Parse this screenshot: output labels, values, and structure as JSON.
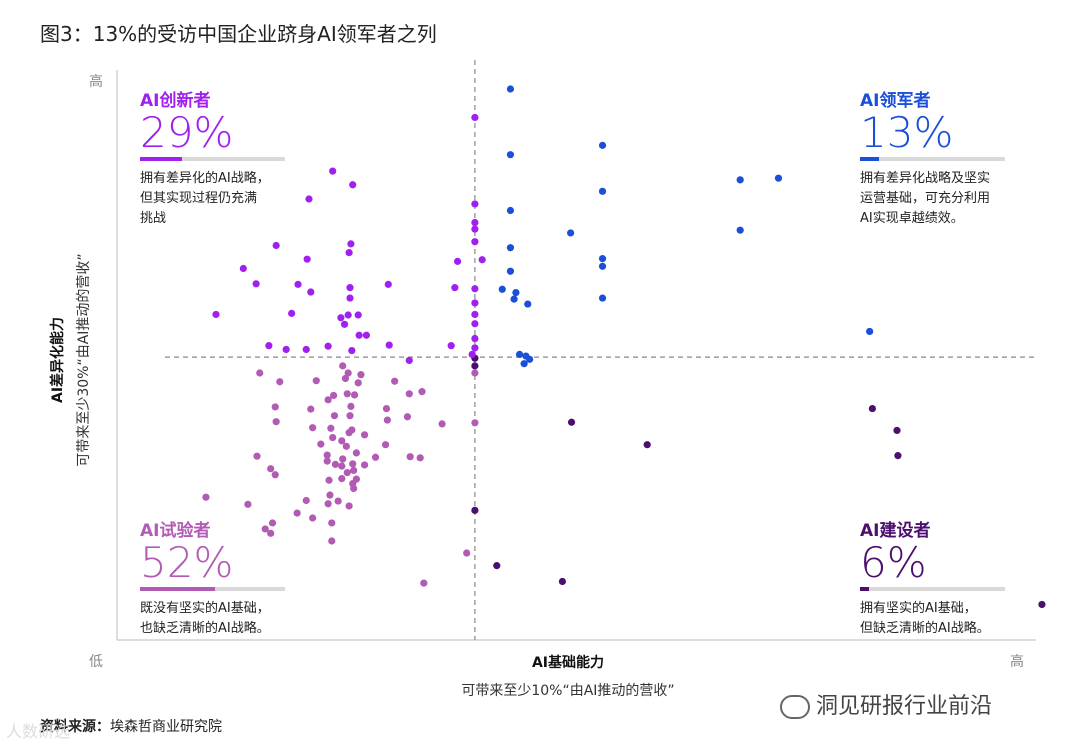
{
  "figure": {
    "title": "图3：13%的受访中国企业跻身AI领军者之列",
    "source_label": "资料来源：",
    "source_text": "埃森哲商业研究院",
    "watermark": "洞见研报行业前沿",
    "watermark2": "人数研选"
  },
  "chart_data": {
    "type": "scatter",
    "title": "图3：13%的受访中国企业跻身AI领军者之列",
    "xlabel": "AI基础能力",
    "xlabel_sub": "可带来至少10%“由AI推动的营收”",
    "ylabel": "AI差异化能力",
    "ylabel_sub": "可带来至少30%“由AI推动的营收”",
    "x_low": "低",
    "x_high": "高",
    "y_high": "高",
    "xlim": [
      0,
      100
    ],
    "ylim": [
      0,
      100
    ],
    "threshold_x": 38.6,
    "threshold_y": 49.5,
    "quadrants": [
      {
        "key": "innovator",
        "name": "AI创新者",
        "pct": "29%",
        "share": 0.29,
        "color": "#a020f0",
        "desc": [
          "拥有差异化的AI战略，",
          "但其实现过程仍充满",
          "挑战"
        ]
      },
      {
        "key": "leader",
        "name": "AI领军者",
        "pct": "13%",
        "share": 0.13,
        "color": "#1b4fd8",
        "desc": [
          "拥有差异化战略及坚实",
          "运营基础，可充分利用",
          "AI实现卓越绩效。"
        ]
      },
      {
        "key": "experimenter",
        "name": "AI试验者",
        "pct": "52%",
        "share": 0.52,
        "color": "#b25bb5",
        "desc": [
          "既没有坚实的AI基础，",
          "也缺乏清晰的AI战略。"
        ]
      },
      {
        "key": "builder",
        "name": "AI建设者",
        "pct": "6%",
        "share": 0.06,
        "color": "#4b0f6e",
        "desc": [
          "拥有坚实的AI基础，",
          "但缺乏清晰的AI战略。"
        ]
      }
    ],
    "series": [
      {
        "name": "AI领军者",
        "color": "#1b4fd8",
        "points": [
          [
            42.5,
            98.5
          ],
          [
            42.5,
            86.5
          ],
          [
            52.6,
            88.2
          ],
          [
            52.6,
            79.8
          ],
          [
            42.5,
            76.3
          ],
          [
            49.1,
            72.2
          ],
          [
            42.5,
            69.5
          ],
          [
            52.6,
            67.5
          ],
          [
            52.6,
            66.1
          ],
          [
            67.7,
            81.9
          ],
          [
            71.9,
            82.2
          ],
          [
            67.7,
            72.7
          ],
          [
            42.5,
            65.2
          ],
          [
            41.6,
            61.9
          ],
          [
            43.1,
            61.3
          ],
          [
            44.4,
            59.2
          ],
          [
            42.9,
            60.1
          ],
          [
            52.6,
            60.3
          ],
          [
            81.9,
            54.2
          ],
          [
            43.5,
            50.0
          ],
          [
            44.2,
            49.7
          ],
          [
            44.6,
            49.1
          ],
          [
            44.0,
            48.3
          ]
        ]
      },
      {
        "name": "AI建设者",
        "color": "#4b0f6e",
        "points": [
          [
            38.6,
            49.3
          ],
          [
            38.6,
            47.9
          ],
          [
            49.2,
            37.6
          ],
          [
            57.5,
            33.5
          ],
          [
            82.2,
            40.1
          ],
          [
            84.9,
            36.1
          ],
          [
            85.0,
            31.5
          ],
          [
            38.6,
            21.5
          ],
          [
            41.0,
            11.4
          ],
          [
            48.2,
            8.5
          ],
          [
            100.8,
            4.3
          ]
        ]
      },
      {
        "name": "AI创新者",
        "color": "#a020f0",
        "points": [
          [
            38.6,
            93.3
          ],
          [
            23.0,
            83.5
          ],
          [
            25.2,
            81.0
          ],
          [
            20.4,
            78.4
          ],
          [
            38.6,
            77.5
          ],
          [
            38.6,
            74.1
          ],
          [
            38.6,
            72.9
          ],
          [
            16.8,
            69.9
          ],
          [
            25.0,
            70.2
          ],
          [
            24.8,
            68.6
          ],
          [
            20.2,
            67.4
          ],
          [
            38.6,
            70.6
          ],
          [
            39.4,
            67.3
          ],
          [
            13.2,
            65.7
          ],
          [
            36.7,
            67.0
          ],
          [
            14.6,
            62.9
          ],
          [
            19.2,
            62.8
          ],
          [
            24.9,
            62.2
          ],
          [
            24.9,
            60.3
          ],
          [
            29.1,
            62.8
          ],
          [
            20.6,
            61.4
          ],
          [
            36.4,
            62.2
          ],
          [
            38.6,
            62.0
          ],
          [
            38.6,
            59.4
          ],
          [
            10.2,
            57.3
          ],
          [
            18.5,
            57.5
          ],
          [
            24.7,
            57.2
          ],
          [
            23.9,
            56.7
          ],
          [
            25.8,
            57.2
          ],
          [
            24.3,
            55.5
          ],
          [
            38.6,
            57.3
          ],
          [
            38.6,
            55.6
          ],
          [
            25.9,
            53.5
          ],
          [
            16.0,
            51.6
          ],
          [
            17.9,
            50.9
          ],
          [
            20.1,
            50.9
          ],
          [
            22.5,
            51.5
          ],
          [
            25.1,
            50.7
          ],
          [
            26.7,
            53.5
          ],
          [
            29.2,
            51.7
          ],
          [
            36.0,
            51.6
          ],
          [
            38.6,
            52.9
          ],
          [
            38.6,
            51.2
          ],
          [
            38.3,
            50.0
          ],
          [
            31.4,
            48.9
          ]
        ]
      },
      {
        "name": "AI试验者",
        "color": "#b25bb5",
        "points": [
          [
            15.0,
            46.6
          ],
          [
            38.6,
            46.6
          ],
          [
            17.2,
            45.0
          ],
          [
            21.2,
            45.2
          ],
          [
            24.4,
            45.6
          ],
          [
            24.7,
            46.6
          ],
          [
            26.1,
            46.3
          ],
          [
            29.8,
            45.1
          ],
          [
            23.1,
            42.5
          ],
          [
            24.6,
            42.8
          ],
          [
            25.4,
            42.6
          ],
          [
            31.4,
            42.8
          ],
          [
            32.8,
            43.2
          ],
          [
            16.7,
            40.4
          ],
          [
            20.6,
            40.0
          ],
          [
            25.0,
            40.5
          ],
          [
            28.9,
            40.1
          ],
          [
            29.0,
            38.0
          ],
          [
            35.0,
            37.3
          ],
          [
            38.6,
            37.5
          ],
          [
            20.8,
            36.6
          ],
          [
            22.8,
            36.5
          ],
          [
            23.0,
            34.8
          ],
          [
            25.1,
            36.2
          ],
          [
            24.8,
            35.7
          ],
          [
            28.8,
            33.5
          ],
          [
            14.7,
            31.4
          ],
          [
            22.4,
            30.5
          ],
          [
            24.0,
            29.6
          ],
          [
            25.2,
            30.0
          ],
          [
            25.3,
            28.8
          ],
          [
            24.6,
            28.4
          ],
          [
            27.7,
            31.2
          ],
          [
            31.5,
            31.3
          ],
          [
            32.6,
            31.1
          ],
          [
            16.2,
            29.1
          ],
          [
            16.7,
            28.0
          ],
          [
            22.6,
            27.0
          ],
          [
            24.0,
            27.3
          ],
          [
            25.2,
            26.4
          ],
          [
            25.3,
            25.5
          ],
          [
            22.7,
            24.3
          ],
          [
            13.7,
            22.6
          ],
          [
            20.1,
            23.3
          ],
          [
            23.6,
            23.2
          ],
          [
            24.8,
            22.3
          ],
          [
            19.1,
            21.0
          ],
          [
            16.4,
            19.2
          ],
          [
            15.6,
            18.1
          ],
          [
            16.2,
            17.3
          ],
          [
            22.9,
            19.2
          ],
          [
            9.1,
            23.9
          ],
          [
            22.9,
            15.9
          ],
          [
            20.8,
            20.1
          ],
          [
            22.5,
            22.7
          ],
          [
            37.7,
            13.7
          ],
          [
            33.0,
            8.2
          ],
          [
            22.4,
            31.6
          ],
          [
            24.0,
            34.2
          ],
          [
            23.2,
            38.8
          ],
          [
            25.8,
            44.8
          ],
          [
            24.1,
            47.9
          ],
          [
            16.8,
            37.7
          ],
          [
            24.9,
            38.8
          ],
          [
            26.5,
            35.3
          ],
          [
            23.3,
            29.9
          ],
          [
            25.6,
            32.0
          ],
          [
            21.7,
            33.6
          ],
          [
            24.5,
            33.2
          ],
          [
            24.1,
            30.9
          ],
          [
            25.6,
            27.2
          ],
          [
            26.5,
            29.8
          ],
          [
            22.5,
            41.7
          ],
          [
            31.2,
            38.6
          ]
        ]
      }
    ]
  }
}
